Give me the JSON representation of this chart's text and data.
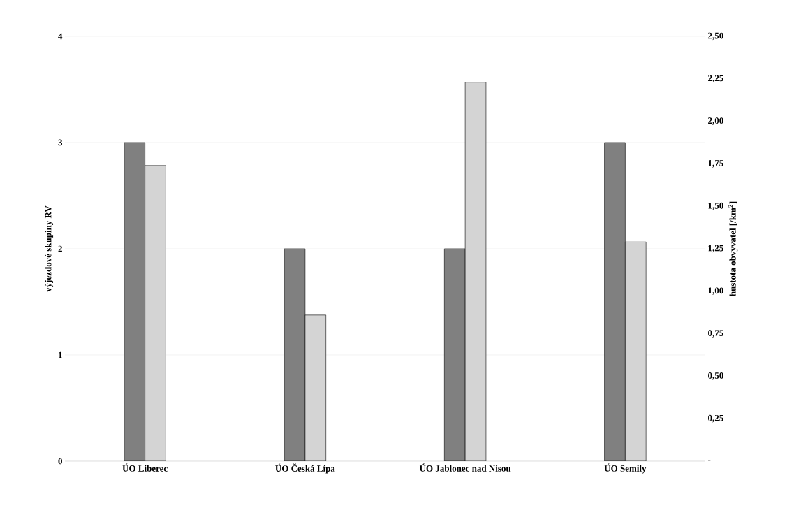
{
  "chart_data": {
    "type": "bar",
    "ylabel": "výjezdové skupiny RV",
    "y2label": "hustota obvyvatel  [/km$^{2}$]",
    "categories": [
      "ÚO Liberec",
      "ÚO Česká Lípa",
      "ÚO Jablonec nad Nisou",
      "ÚO Semily"
    ],
    "series": [
      {
        "color": "#808080",
        "values": [
          3,
          2,
          2,
          3
        ]
      },
      {
        "color": "#d4d4d4",
        "axis": "y2",
        "values": [
          1.74,
          0.86,
          2.23,
          1.29
        ]
      }
    ],
    "ylim": [
      0,
      4
    ],
    "yticks": [
      0,
      1,
      2,
      3,
      4
    ],
    "y2lim": [
      0,
      2.5
    ],
    "y2ticks": [
      {
        "value": 0,
        "label": "-"
      },
      {
        "value": 0.25,
        "label": "0,25"
      },
      {
        "value": 0.5,
        "label": "0,50"
      },
      {
        "value": 0.75,
        "label": "0,75"
      },
      {
        "value": 1,
        "label": "1,00"
      },
      {
        "value": 1.25,
        "label": "1,25"
      },
      {
        "value": 1.5,
        "label": "1,50"
      },
      {
        "value": 1.75,
        "label": "1,75"
      },
      {
        "value": 2,
        "label": "2,00"
      },
      {
        "value": 2.25,
        "label": "2,25"
      },
      {
        "value": 2.5,
        "label": "2,50"
      }
    ],
    "grid": "y"
  }
}
